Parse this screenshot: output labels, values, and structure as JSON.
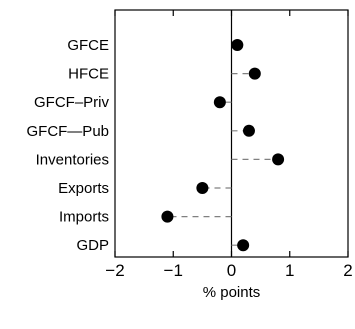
{
  "chart_data": {
    "type": "scatter",
    "orientation": "horizontal-dot",
    "categories": [
      "GFCE",
      "HFCE",
      "GFCF–Priv",
      "GFCF—Pub",
      "Inventories",
      "Exports",
      "Imports",
      "GDP"
    ],
    "values": [
      0.1,
      0.4,
      -0.2,
      0.3,
      0.8,
      -0.5,
      -1.1,
      0.2
    ],
    "xlabel": "% points",
    "xlim": [
      -2,
      2
    ],
    "xticks": [
      -2,
      -1,
      0,
      1,
      2
    ],
    "xtick_labels": [
      "−2",
      "−1",
      "0",
      "1",
      "2"
    ],
    "dashed_connector_to_zero": true,
    "zero_line": true,
    "grid": false,
    "marker_color": "#000000",
    "connector_color": "#808080"
  }
}
